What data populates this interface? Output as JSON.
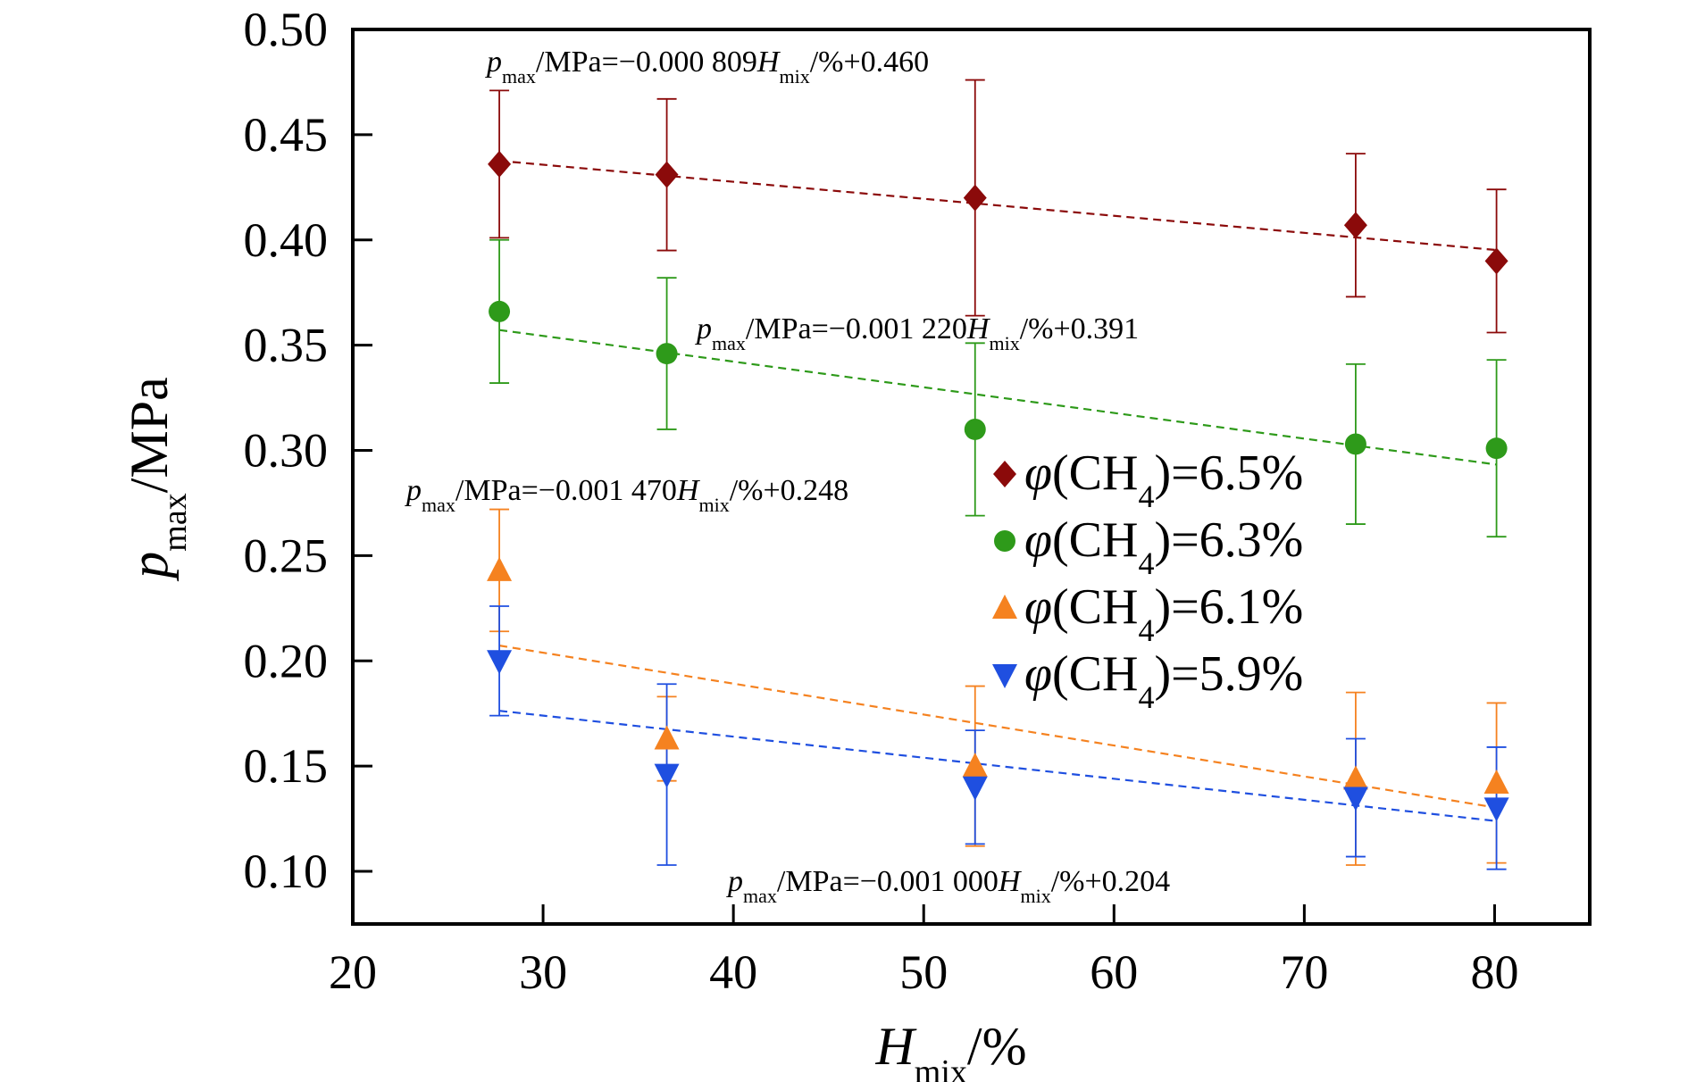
{
  "chart_data": {
    "type": "scatter",
    "xlabel": {
      "main": "H",
      "sub": "mix",
      "tail": "/%"
    },
    "ylabel": {
      "main": "p",
      "sub": "max",
      "tail": "/MPa"
    },
    "xlim": [
      20,
      85
    ],
    "ylim": [
      0.075,
      0.5
    ],
    "xticks": [
      20,
      30,
      40,
      50,
      60,
      70,
      80
    ],
    "xtick_labels": [
      "20",
      "30",
      "40",
      "50",
      "60",
      "70",
      "80"
    ],
    "yticks": [
      0.1,
      0.15,
      0.2,
      0.25,
      0.3,
      0.35,
      0.4,
      0.45,
      0.5
    ],
    "ytick_labels": [
      "0.10",
      "0.15",
      "0.20",
      "0.25",
      "0.30",
      "0.35",
      "0.40",
      "0.45",
      "0.50"
    ],
    "grid": false,
    "legend_position": "center-right",
    "series": [
      {
        "name": "φ(CH4)=6.5%",
        "legend": {
          "pre": "φ(CH",
          "sub": "4",
          "post": ")=6.5%"
        },
        "marker": "diamond",
        "color": "#8B0A0A",
        "x": [
          27.7,
          36.5,
          52.7,
          72.7,
          80.1
        ],
        "y": [
          0.436,
          0.431,
          0.42,
          0.407,
          0.39
        ],
        "err": [
          0.035,
          0.036,
          0.056,
          0.034,
          0.034
        ],
        "fit": {
          "slope": -0.000809,
          "intercept": 0.46,
          "x_range": [
            27.7,
            80.1
          ]
        },
        "equation": {
          "p": "p",
          "psub": "max",
          "a": "/MPa=−0.000 809",
          "h": "H",
          "hsub": "mix",
          "b": "/%+0.460"
        }
      },
      {
        "name": "φ(CH4)=6.3%",
        "legend": {
          "pre": "φ(CH",
          "sub": "4",
          "post": ")=6.3%"
        },
        "marker": "circle",
        "color": "#2E9A1A",
        "x": [
          27.7,
          36.5,
          52.7,
          72.7,
          80.1
        ],
        "y": [
          0.366,
          0.346,
          0.31,
          0.303,
          0.301
        ],
        "err": [
          0.034,
          0.036,
          0.041,
          0.038,
          0.042
        ],
        "fit": {
          "slope": -0.00122,
          "intercept": 0.391,
          "x_range": [
            27.7,
            80.1
          ]
        },
        "equation": {
          "p": "p",
          "psub": "max",
          "a": "/MPa=−0.001 220",
          "h": "H",
          "hsub": "mix",
          "b": "/%+0.391"
        }
      },
      {
        "name": "φ(CH4)=6.1%",
        "legend": {
          "pre": "φ(CH",
          "sub": "4",
          "post": ")=6.1%"
        },
        "marker": "triangle-up",
        "color": "#F58220",
        "x": [
          27.7,
          36.5,
          52.7,
          72.7,
          80.1
        ],
        "y": [
          0.243,
          0.163,
          0.15,
          0.144,
          0.142
        ],
        "err": [
          0.029,
          0.02,
          0.038,
          0.041,
          0.038
        ],
        "fit": {
          "slope": -0.00147,
          "intercept": 0.248,
          "x_range": [
            27.7,
            80.1
          ]
        },
        "equation": {
          "p": "p",
          "psub": "max",
          "a": "/MPa=−0.001 470",
          "h": "H",
          "hsub": "mix",
          "b": "/%+0.248"
        }
      },
      {
        "name": "φ(CH4)=5.9%",
        "legend": {
          "pre": "φ(CH",
          "sub": "4",
          "post": ")=5.9%"
        },
        "marker": "triangle-down",
        "color": "#1F4FE0",
        "x": [
          27.7,
          36.5,
          52.7,
          72.7,
          80.1
        ],
        "y": [
          0.2,
          0.146,
          0.14,
          0.135,
          0.13
        ],
        "err": [
          0.026,
          0.043,
          0.027,
          0.028,
          0.029
        ],
        "fit": {
          "slope": -0.001,
          "intercept": 0.204,
          "x_range": [
            27.7,
            80.1
          ]
        },
        "equation": {
          "p": "p",
          "psub": "max",
          "a": "/MPa=−0.001 000",
          "h": "H",
          "hsub": "mix",
          "b": "/%+0.204"
        }
      }
    ]
  }
}
